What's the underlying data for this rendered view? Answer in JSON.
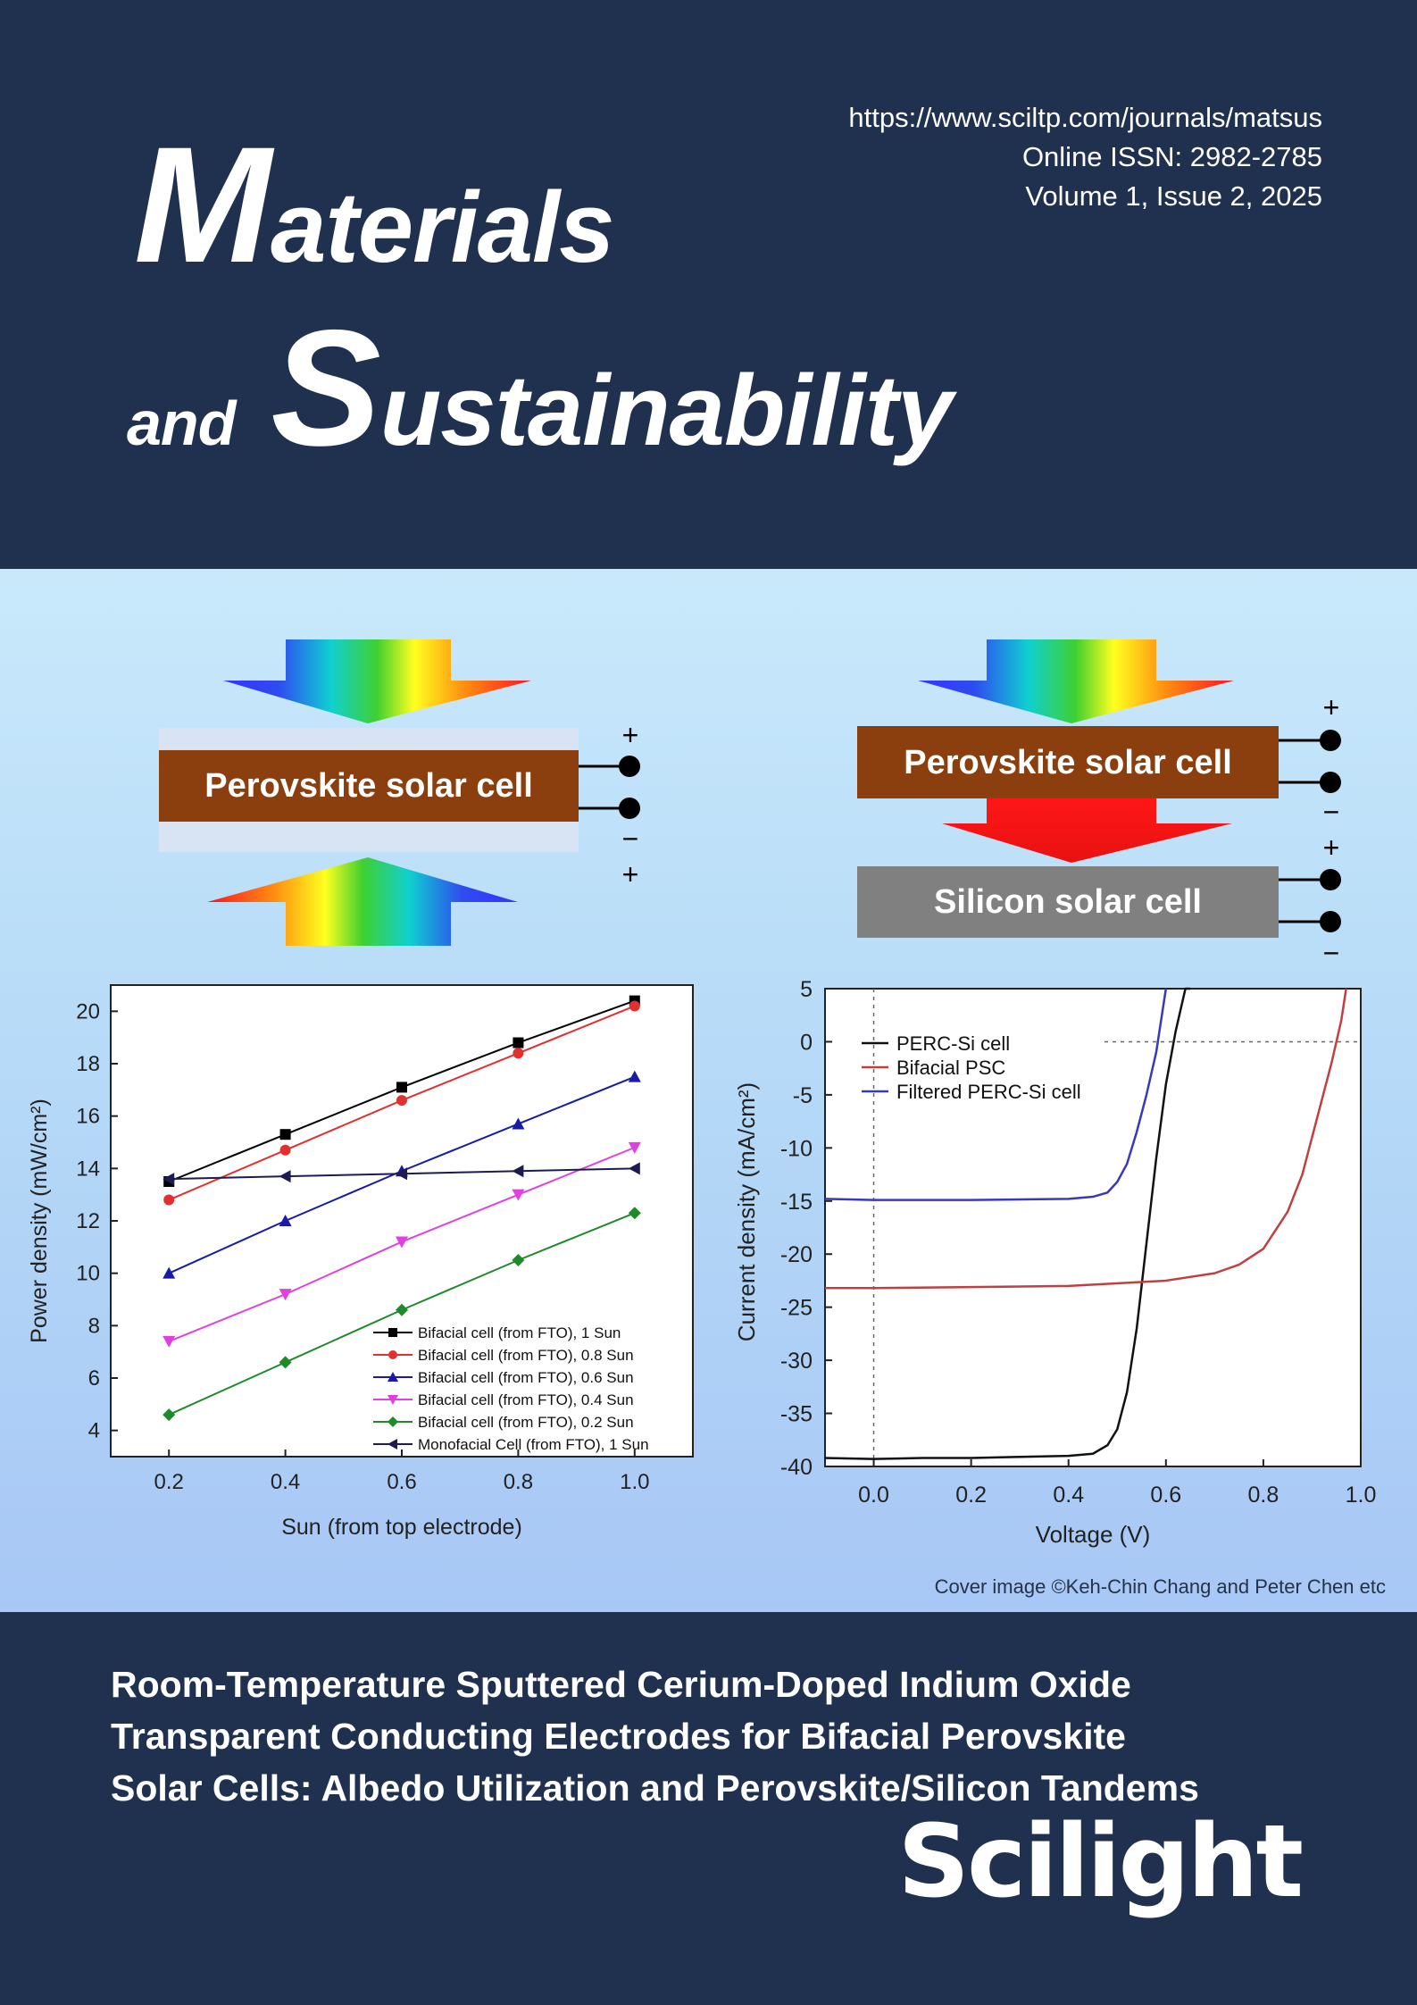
{
  "header": {
    "url": "https://www.sciltp.com/journals/matsus",
    "issn": "Online ISSN: 2982-2785",
    "volume": "Volume 1, Issue 2, 2025",
    "title_line1_cap": "M",
    "title_line1_rest": "aterials",
    "title_line2_small": "and",
    "title_line2_cap": "S",
    "title_line2_rest": "ustainability"
  },
  "diagram": {
    "left_cell_label": "Perovskite solar cell",
    "right_top_label": "Perovskite solar cell",
    "right_bottom_label": "Silicon solar cell",
    "plus": "+",
    "minus": "−"
  },
  "credit": "Cover image ©Keh-Chin Chang  and Peter Chen etc",
  "article_title": [
    "Room-Temperature Sputtered Cerium-Doped Indium Oxide",
    " Transparent Conducting Electrodes for Bifacial Perovskite",
    "Solar Cells: Albedo Utilization and Perovskite/Silicon Tandems"
  ],
  "publisher": "Scilight",
  "chart_data": [
    {
      "type": "line",
      "title": "",
      "xlabel": "Sun (from top electrode)",
      "ylabel": "Power density (mW/cm²)",
      "xlim": [
        0.1,
        1.1
      ],
      "ylim": [
        3,
        21
      ],
      "xticks": [
        "0.2",
        "0.4",
        "0.6",
        "0.8",
        "1.0"
      ],
      "yticks": [
        "4",
        "6",
        "8",
        "10",
        "12",
        "14",
        "16",
        "18",
        "20"
      ],
      "x": [
        0.2,
        0.4,
        0.6,
        0.8,
        1.0
      ],
      "legend_position": "bottom-right",
      "series": [
        {
          "name": "Bifacial cell (from FTO), 1 Sun",
          "color": "#000000",
          "marker": "square",
          "values": [
            13.5,
            15.3,
            17.1,
            18.8,
            20.4
          ]
        },
        {
          "name": "Bifacial cell (from FTO), 0.8 Sun",
          "color": "#e03030",
          "marker": "circle",
          "values": [
            12.8,
            14.7,
            16.6,
            18.4,
            20.2
          ]
        },
        {
          "name": "Bifacial cell (from FTO), 0.6 Sun",
          "color": "#1a1aa8",
          "marker": "triangle-up",
          "values": [
            10.0,
            12.0,
            13.9,
            15.7,
            17.5
          ]
        },
        {
          "name": "Bifacial cell (from FTO), 0.4 Sun",
          "color": "#e040e0",
          "marker": "triangle-down",
          "values": [
            7.4,
            9.2,
            11.2,
            13.0,
            14.8
          ]
        },
        {
          "name": "Bifacial cell (from FTO), 0.2 Sun",
          "color": "#1f8a2a",
          "marker": "diamond",
          "values": [
            4.6,
            6.6,
            8.6,
            10.5,
            12.3
          ]
        },
        {
          "name": "Monofacial Cell (from FTO), 1 Sun",
          "color": "#1c1c50",
          "marker": "triangle-left",
          "values": [
            13.6,
            13.7,
            13.8,
            13.9,
            14.0
          ]
        }
      ]
    },
    {
      "type": "line",
      "title": "",
      "xlabel": "Voltage (V)",
      "ylabel": "Current density (mA/cm²)",
      "xlim": [
        -0.1,
        1.0
      ],
      "ylim": [
        -40,
        5
      ],
      "xticks": [
        "0.0",
        "0.2",
        "0.4",
        "0.6",
        "0.8",
        "1.0"
      ],
      "yticks": [
        "5",
        "0",
        "-5",
        "-10",
        "-15",
        "-20",
        "-25",
        "-30",
        "-35",
        "-40"
      ],
      "legend_position": "top-left",
      "series": [
        {
          "name": "PERC-Si cell",
          "color": "#111111",
          "x": [
            -0.1,
            0.0,
            0.1,
            0.2,
            0.3,
            0.4,
            0.45,
            0.48,
            0.5,
            0.52,
            0.54,
            0.56,
            0.58,
            0.6,
            0.62,
            0.64,
            0.65
          ],
          "values": [
            -39.2,
            -39.3,
            -39.2,
            -39.2,
            -39.1,
            -39.0,
            -38.8,
            -38.0,
            -36.5,
            -33.0,
            -27.0,
            -19.0,
            -11.0,
            -4.0,
            1.0,
            5.0,
            5.0
          ]
        },
        {
          "name": "Bifacial PSC",
          "color": "#c04040",
          "x": [
            -0.1,
            0.0,
            0.2,
            0.4,
            0.6,
            0.7,
            0.75,
            0.8,
            0.85,
            0.88,
            0.9,
            0.92,
            0.94,
            0.96,
            0.97
          ],
          "values": [
            -23.2,
            -23.2,
            -23.1,
            -23.0,
            -22.5,
            -21.8,
            -21.0,
            -19.5,
            -16.0,
            -12.5,
            -9.0,
            -5.5,
            -2.0,
            2.0,
            5.0
          ]
        },
        {
          "name": "Filtered PERC-Si cell",
          "color": "#3a3ab8",
          "x": [
            -0.1,
            0.0,
            0.2,
            0.4,
            0.45,
            0.48,
            0.5,
            0.52,
            0.54,
            0.56,
            0.58,
            0.59,
            0.6
          ],
          "values": [
            -14.8,
            -14.9,
            -14.9,
            -14.8,
            -14.6,
            -14.2,
            -13.2,
            -11.5,
            -8.5,
            -5.0,
            -1.0,
            2.0,
            5.0
          ]
        }
      ]
    }
  ]
}
